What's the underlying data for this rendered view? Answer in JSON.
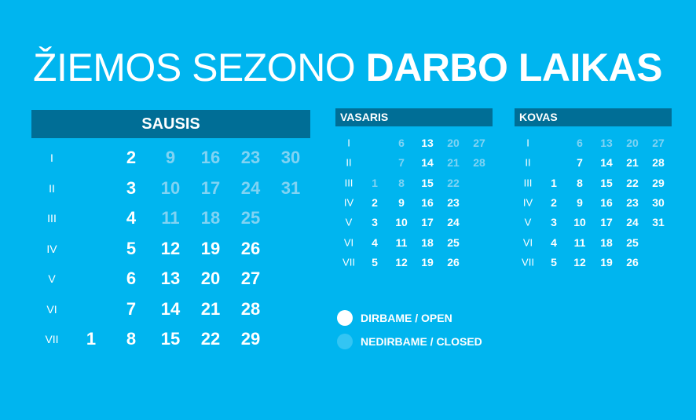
{
  "title": {
    "light": "ŽIEMOS SEZONO",
    "bold": "DARBO LAIKAS"
  },
  "colors": {
    "background": "#00b5ef",
    "header": "#006e96",
    "open": "#ffffff",
    "closed": "#80d3f3",
    "closed_dot": "#33c5f3"
  },
  "weekdays": [
    "I",
    "II",
    "III",
    "IV",
    "V",
    "VI",
    "VII"
  ],
  "months": [
    {
      "name": "SAUSIS",
      "rows": [
        [
          null,
          {
            "d": "2",
            "open": true
          },
          {
            "d": "9",
            "open": false
          },
          {
            "d": "16",
            "open": false
          },
          {
            "d": "23",
            "open": false
          },
          {
            "d": "30",
            "open": false
          }
        ],
        [
          null,
          {
            "d": "3",
            "open": true
          },
          {
            "d": "10",
            "open": false
          },
          {
            "d": "17",
            "open": false
          },
          {
            "d": "24",
            "open": false
          },
          {
            "d": "31",
            "open": false
          }
        ],
        [
          null,
          {
            "d": "4",
            "open": true
          },
          {
            "d": "11",
            "open": false
          },
          {
            "d": "18",
            "open": false
          },
          {
            "d": "25",
            "open": false
          },
          null
        ],
        [
          null,
          {
            "d": "5",
            "open": true
          },
          {
            "d": "12",
            "open": true
          },
          {
            "d": "19",
            "open": true
          },
          {
            "d": "26",
            "open": true
          },
          null
        ],
        [
          null,
          {
            "d": "6",
            "open": true
          },
          {
            "d": "13",
            "open": true
          },
          {
            "d": "20",
            "open": true
          },
          {
            "d": "27",
            "open": true
          },
          null
        ],
        [
          null,
          {
            "d": "7",
            "open": true
          },
          {
            "d": "14",
            "open": true
          },
          {
            "d": "21",
            "open": true
          },
          {
            "d": "28",
            "open": true
          },
          null
        ],
        [
          {
            "d": "1",
            "open": true
          },
          {
            "d": "8",
            "open": true
          },
          {
            "d": "15",
            "open": true
          },
          {
            "d": "22",
            "open": true
          },
          {
            "d": "29",
            "open": true
          },
          null
        ]
      ]
    },
    {
      "name": "VASARIS",
      "rows": [
        [
          null,
          {
            "d": "6",
            "open": false
          },
          {
            "d": "13",
            "open": true
          },
          {
            "d": "20",
            "open": false
          },
          {
            "d": "27",
            "open": false
          }
        ],
        [
          null,
          {
            "d": "7",
            "open": false
          },
          {
            "d": "14",
            "open": true
          },
          {
            "d": "21",
            "open": false
          },
          {
            "d": "28",
            "open": false
          }
        ],
        [
          {
            "d": "1",
            "open": false
          },
          {
            "d": "8",
            "open": false
          },
          {
            "d": "15",
            "open": true
          },
          {
            "d": "22",
            "open": false
          },
          null
        ],
        [
          {
            "d": "2",
            "open": true
          },
          {
            "d": "9",
            "open": true
          },
          {
            "d": "16",
            "open": true
          },
          {
            "d": "23",
            "open": true
          },
          null
        ],
        [
          {
            "d": "3",
            "open": true
          },
          {
            "d": "10",
            "open": true
          },
          {
            "d": "17",
            "open": true
          },
          {
            "d": "24",
            "open": true
          },
          null
        ],
        [
          {
            "d": "4",
            "open": true
          },
          {
            "d": "11",
            "open": true
          },
          {
            "d": "18",
            "open": true
          },
          {
            "d": "25",
            "open": true
          },
          null
        ],
        [
          {
            "d": "5",
            "open": true
          },
          {
            "d": "12",
            "open": true
          },
          {
            "d": "19",
            "open": true
          },
          {
            "d": "26",
            "open": true
          },
          null
        ]
      ]
    },
    {
      "name": "KOVAS",
      "rows": [
        [
          null,
          {
            "d": "6",
            "open": false
          },
          {
            "d": "13",
            "open": false
          },
          {
            "d": "20",
            "open": false
          },
          {
            "d": "27",
            "open": false
          }
        ],
        [
          null,
          {
            "d": "7",
            "open": true
          },
          {
            "d": "14",
            "open": true
          },
          {
            "d": "21",
            "open": true
          },
          {
            "d": "28",
            "open": true
          }
        ],
        [
          {
            "d": "1",
            "open": true
          },
          {
            "d": "8",
            "open": true
          },
          {
            "d": "15",
            "open": true
          },
          {
            "d": "22",
            "open": true
          },
          {
            "d": "29",
            "open": true
          }
        ],
        [
          {
            "d": "2",
            "open": true
          },
          {
            "d": "9",
            "open": true
          },
          {
            "d": "16",
            "open": true
          },
          {
            "d": "23",
            "open": true
          },
          {
            "d": "30",
            "open": true
          }
        ],
        [
          {
            "d": "3",
            "open": true
          },
          {
            "d": "10",
            "open": true
          },
          {
            "d": "17",
            "open": true
          },
          {
            "d": "24",
            "open": true
          },
          {
            "d": "31",
            "open": true
          }
        ],
        [
          {
            "d": "4",
            "open": true
          },
          {
            "d": "11",
            "open": true
          },
          {
            "d": "18",
            "open": true
          },
          {
            "d": "25",
            "open": true
          },
          null
        ],
        [
          {
            "d": "5",
            "open": true
          },
          {
            "d": "12",
            "open": true
          },
          {
            "d": "19",
            "open": true
          },
          {
            "d": "26",
            "open": true
          },
          null
        ]
      ]
    }
  ],
  "legend": [
    {
      "label": "DIRBAME / OPEN",
      "state": "open"
    },
    {
      "label": "NEDIRBAME / CLOSED",
      "state": "closed"
    }
  ]
}
